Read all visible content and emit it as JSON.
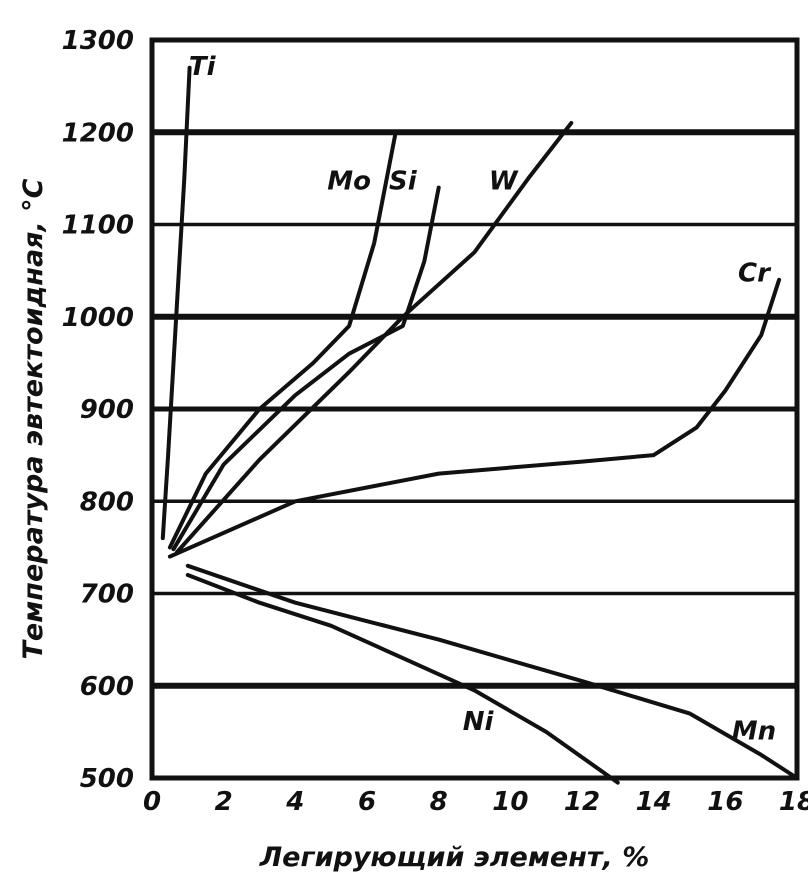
{
  "chart_data": {
    "type": "line",
    "title": "",
    "xlabel": "Легирующий элемент, %",
    "ylabel": "Температура эвтектоидная, °C",
    "xlim": [
      0,
      18
    ],
    "ylim": [
      500,
      1300
    ],
    "xticks": [
      "0",
      "2",
      "4",
      "6",
      "8",
      "10",
      "12",
      "14",
      "16",
      "18"
    ],
    "yticks": [
      "500",
      "600",
      "700",
      "800",
      "900",
      "1000",
      "1100",
      "1200",
      "1300"
    ],
    "grid": "horizontal",
    "legend": "labels on curves",
    "series": [
      {
        "name": "Ti",
        "label_text": "Ti",
        "points": [
          [
            0.3,
            760
          ],
          [
            0.45,
            850
          ],
          [
            0.6,
            950
          ],
          [
            0.75,
            1050
          ],
          [
            0.9,
            1150
          ],
          [
            1.05,
            1270
          ]
        ]
      },
      {
        "name": "Mo",
        "label_text": "Mo",
        "points": [
          [
            0.5,
            750
          ],
          [
            1.5,
            830
          ],
          [
            3,
            900
          ],
          [
            4.5,
            950
          ],
          [
            5.5,
            990
          ],
          [
            6.2,
            1080
          ],
          [
            6.8,
            1200
          ]
        ]
      },
      {
        "name": "Si",
        "label_text": "Si",
        "points": [
          [
            0.6,
            748
          ],
          [
            2,
            840
          ],
          [
            4,
            915
          ],
          [
            5.5,
            960
          ],
          [
            7,
            990
          ],
          [
            7.6,
            1060
          ],
          [
            8.0,
            1140
          ]
        ]
      },
      {
        "name": "W",
        "label_text": "W",
        "points": [
          [
            0.7,
            745
          ],
          [
            3,
            845
          ],
          [
            5.5,
            940
          ],
          [
            7,
            1000
          ],
          [
            9,
            1070
          ],
          [
            10.5,
            1150
          ],
          [
            11.7,
            1210
          ]
        ]
      },
      {
        "name": "Cr",
        "label_text": "Cr",
        "points": [
          [
            0.5,
            740
          ],
          [
            4,
            800
          ],
          [
            8,
            830
          ],
          [
            12,
            843
          ],
          [
            14,
            850
          ],
          [
            15.2,
            880
          ],
          [
            16,
            920
          ],
          [
            17,
            980
          ],
          [
            17.5,
            1040
          ]
        ]
      },
      {
        "name": "Ni",
        "label_text": "Ni",
        "points": [
          [
            1,
            720
          ],
          [
            3,
            690
          ],
          [
            5,
            665
          ],
          [
            7,
            630
          ],
          [
            9,
            595
          ],
          [
            11,
            550
          ],
          [
            13,
            495
          ]
        ]
      },
      {
        "name": "Mn",
        "label_text": "Mn",
        "points": [
          [
            1,
            730
          ],
          [
            4,
            690
          ],
          [
            8,
            650
          ],
          [
            12,
            605
          ],
          [
            15,
            570
          ],
          [
            17,
            525
          ],
          [
            18,
            500
          ]
        ]
      }
    ]
  },
  "colors": {
    "background": "#ffffff",
    "ink": "#111111"
  }
}
